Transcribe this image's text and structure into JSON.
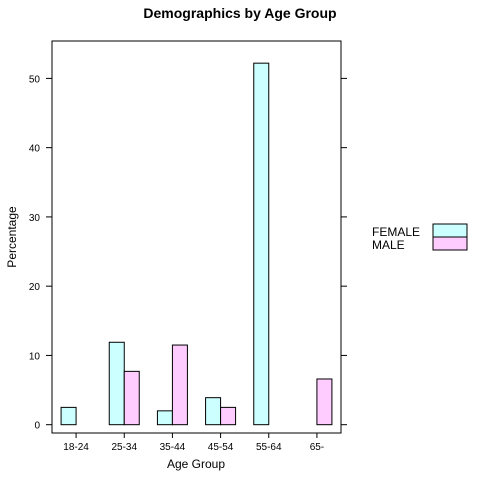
{
  "chart_data": {
    "type": "bar",
    "title": "Demographics by Age Group",
    "xlabel": "Age Group",
    "ylabel": "Percentage",
    "categories": [
      "18-24",
      "25-34",
      "35-44",
      "45-54",
      "55-64",
      "65-"
    ],
    "series": [
      {
        "name": "FEMALE",
        "values": [
          2.5,
          11.9,
          2.0,
          3.9,
          52.2,
          0
        ],
        "color": "#ccffff"
      },
      {
        "name": "MALE",
        "values": [
          0,
          7.7,
          11.5,
          2.5,
          0,
          6.6
        ],
        "color": "#ffccff"
      }
    ],
    "yticks": [
      0,
      10,
      20,
      30,
      40,
      50
    ],
    "ylim": [
      -1.2,
      55.4
    ],
    "grid": false,
    "legend": "right",
    "bar_stroke": "#000000"
  }
}
